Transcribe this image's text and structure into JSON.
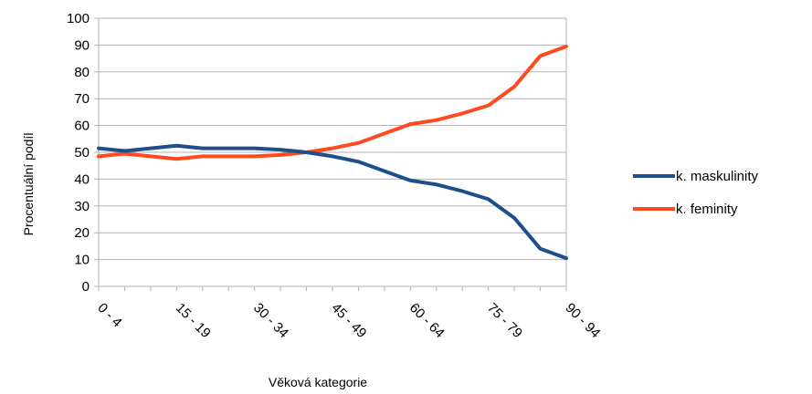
{
  "chart_data": {
    "type": "line",
    "title": "",
    "xlabel": "Věková kategorie",
    "ylabel": "Procentuální podíl",
    "ylim": [
      0,
      100
    ],
    "yticks": [
      0,
      10,
      20,
      30,
      40,
      50,
      60,
      70,
      80,
      90,
      100
    ],
    "grid": "horizontal",
    "legend_position": "right",
    "categories": [
      "0 - 4",
      "5 - 9",
      "10 - 14",
      "15 - 19",
      "20 - 24",
      "25 - 29",
      "30 - 34",
      "35 - 39",
      "40 - 44",
      "45 - 49",
      "50 - 54",
      "55 - 59",
      "60 - 64",
      "65 - 69",
      "70 - 74",
      "75 - 79",
      "80 - 84",
      "85 - 89",
      "90 - 94"
    ],
    "visible_tick_labels": [
      "0 - 4",
      "15 - 19",
      "30 - 34",
      "45 - 49",
      "60 - 64",
      "75 - 79",
      "90 - 94"
    ],
    "series": [
      {
        "name": "k. maskulinity",
        "color": "#1f4e8c",
        "values": [
          51.5,
          50.5,
          51.5,
          52.5,
          51.5,
          51.5,
          51.5,
          51,
          50,
          48.5,
          46.5,
          43,
          39.5,
          38,
          35.5,
          32.5,
          25.5,
          14,
          10.5
        ]
      },
      {
        "name": "k. feminity",
        "color": "#ff4a1f",
        "values": [
          48.5,
          49.5,
          48.5,
          47.5,
          48.5,
          48.5,
          48.5,
          49,
          50,
          51.5,
          53.5,
          57,
          60.5,
          62,
          64.5,
          67.5,
          74.5,
          86,
          89.5
        ]
      }
    ]
  }
}
